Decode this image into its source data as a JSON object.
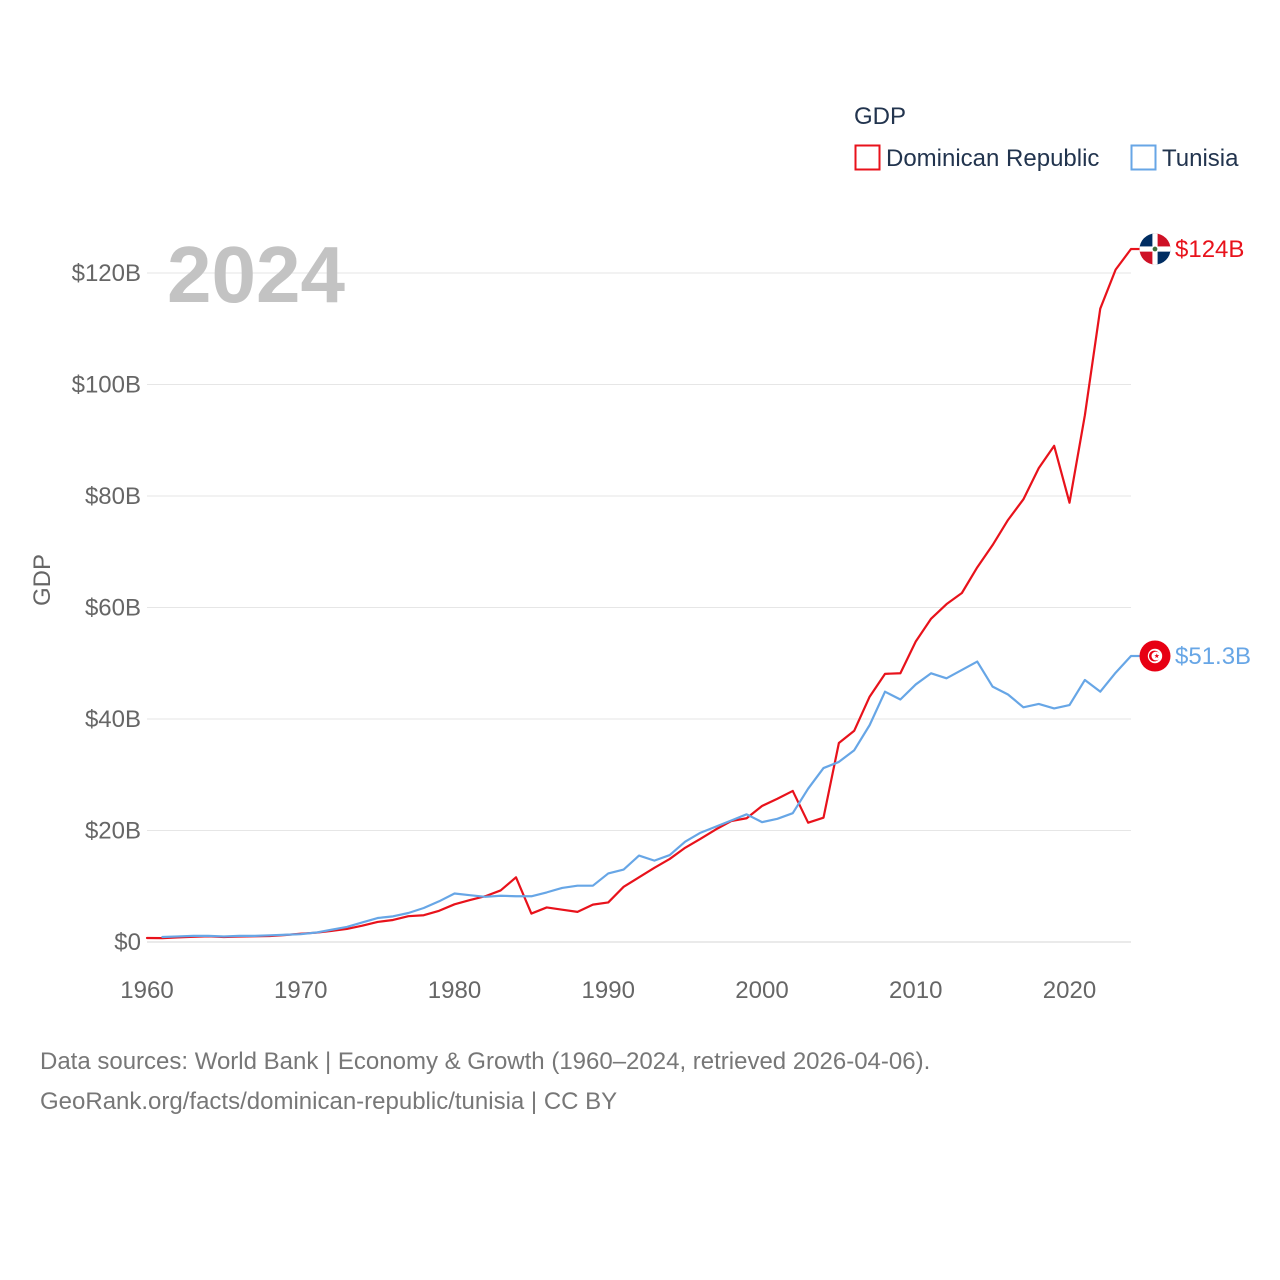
{
  "chart_data": {
    "type": "line",
    "legend_title": "GDP",
    "legend_position": "top-right",
    "year_annotation": "2024",
    "ylabel": "GDP",
    "xlim": [
      1960,
      2024
    ],
    "ylim": [
      0,
      130
    ],
    "grid": true,
    "x_ticks": [
      1960,
      1970,
      1980,
      1990,
      2000,
      2010,
      2020
    ],
    "x_tick_labels": [
      "1960",
      "1970",
      "1980",
      "1990",
      "2000",
      "2010",
      "2020"
    ],
    "y_ticks": [
      0,
      20,
      40,
      60,
      80,
      100,
      120
    ],
    "y_tick_labels": [
      "$0",
      "$20B",
      "$40B",
      "$60B",
      "$80B",
      "$100B",
      "$120B"
    ],
    "x": [
      1960,
      1961,
      1962,
      1963,
      1964,
      1965,
      1966,
      1967,
      1968,
      1969,
      1970,
      1971,
      1972,
      1973,
      1974,
      1975,
      1976,
      1977,
      1978,
      1979,
      1980,
      1981,
      1982,
      1983,
      1984,
      1985,
      1986,
      1987,
      1988,
      1989,
      1990,
      1991,
      1992,
      1993,
      1994,
      1995,
      1996,
      1997,
      1998,
      1999,
      2000,
      2001,
      2002,
      2003,
      2004,
      2005,
      2006,
      2007,
      2008,
      2009,
      2010,
      2011,
      2012,
      2013,
      2014,
      2015,
      2016,
      2017,
      2018,
      2019,
      2020,
      2021,
      2022,
      2023,
      2024
    ],
    "series": [
      {
        "name": "Dominican Republic",
        "color": "#e8121b",
        "icon": "dominican-republic-flag-icon",
        "end_label": "$124B",
        "values": [
          0.72,
          0.69,
          0.82,
          0.94,
          1.02,
          0.89,
          0.98,
          1.03,
          1.08,
          1.26,
          1.49,
          1.67,
          1.99,
          2.34,
          2.92,
          3.6,
          3.95,
          4.63,
          4.8,
          5.6,
          6.76,
          7.53,
          8.21,
          9.25,
          11.6,
          5.1,
          6.2,
          5.8,
          5.4,
          6.7,
          7.1,
          9.9,
          11.6,
          13.3,
          14.9,
          16.9,
          18.5,
          20.2,
          21.7,
          22.2,
          24.4,
          25.7,
          27.1,
          21.4,
          22.3,
          35.7,
          37.9,
          44.0,
          48.1,
          48.2,
          53.9,
          58.0,
          60.6,
          62.6,
          67.2,
          71.2,
          75.7,
          79.4,
          85.0,
          89.0,
          78.8,
          94.5,
          113.6,
          120.6,
          124.3
        ]
      },
      {
        "name": "Tunisia",
        "color": "#67a6e6",
        "icon": "tunisia-flag-icon",
        "end_label": "$51.3B",
        "values": [
          null,
          0.9,
          1.0,
          1.1,
          1.1,
          1.0,
          1.1,
          1.1,
          1.2,
          1.3,
          1.4,
          1.7,
          2.2,
          2.7,
          3.5,
          4.3,
          4.6,
          5.2,
          6.1,
          7.3,
          8.7,
          8.4,
          8.1,
          8.3,
          8.2,
          8.2,
          8.9,
          9.7,
          10.1,
          10.1,
          12.3,
          13.0,
          15.5,
          14.6,
          15.6,
          18.0,
          19.6,
          20.7,
          21.8,
          22.9,
          21.5,
          22.1,
          23.1,
          27.5,
          31.2,
          32.3,
          34.4,
          38.9,
          44.9,
          43.5,
          46.2,
          48.2,
          47.3,
          48.8,
          50.3,
          45.8,
          44.4,
          42.1,
          42.7,
          41.9,
          42.5,
          47.0,
          44.9,
          48.3,
          51.3
        ]
      }
    ]
  },
  "source": {
    "line1": "Data sources: World Bank | Economy & Growth (1960–2024, retrieved 2026-04-06).",
    "line2": "GeoRank.org/facts/dominican-republic/tunisia | CC BY"
  }
}
